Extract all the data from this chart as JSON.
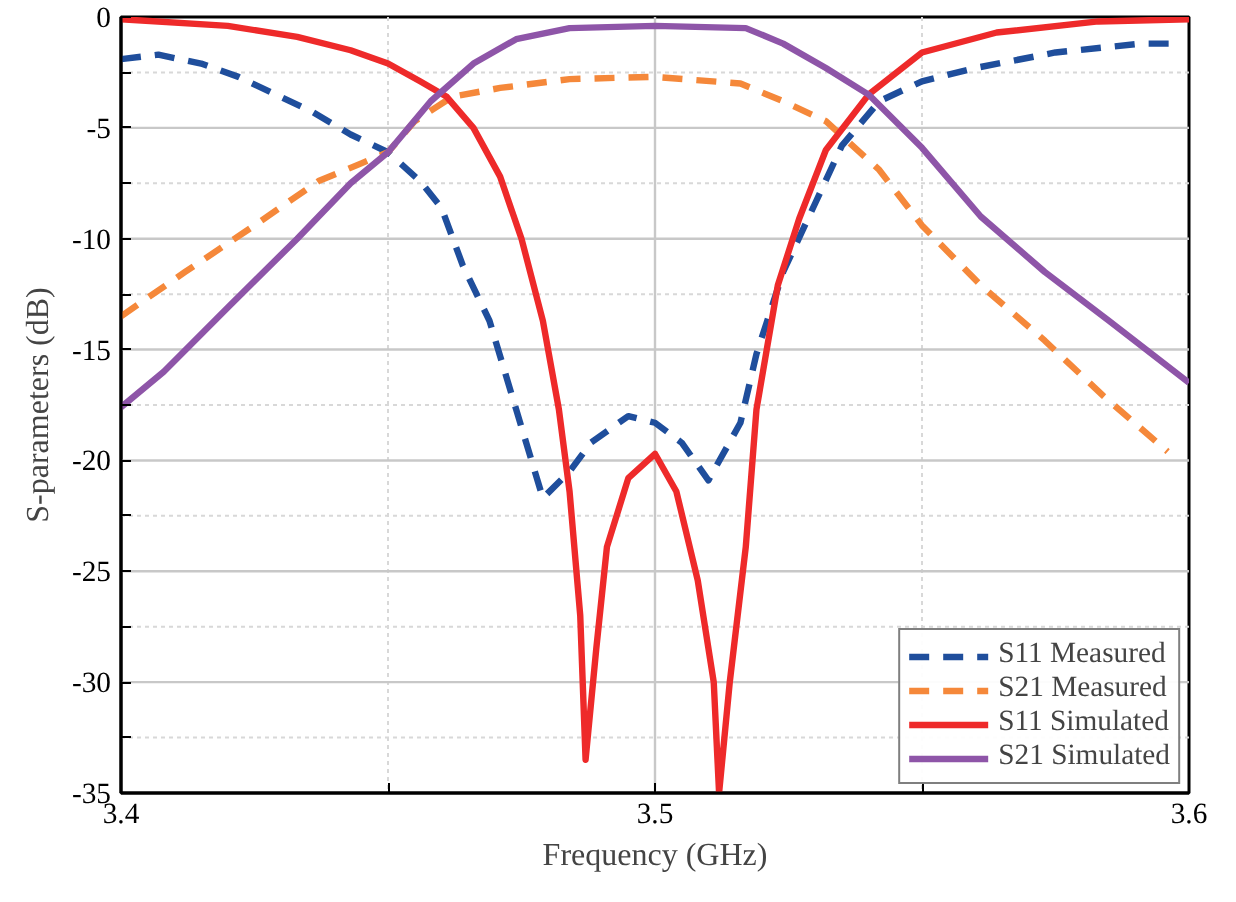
{
  "chart_data": {
    "type": "line",
    "xlabel": "Frequency (GHz)",
    "ylabel": "S-parameters (dB)",
    "xlim": [
      3.4,
      3.6
    ],
    "ylim": [
      -35,
      0
    ],
    "xticks": [
      3.4,
      {
        "value": 3.45,
        "label": null
      },
      3.5,
      {
        "value": 3.55,
        "label": null
      },
      3.6
    ],
    "yticks": [
      -35,
      {
        "value": -32.5,
        "label": null
      },
      -30,
      {
        "value": -27.5,
        "label": null
      },
      -25,
      {
        "value": -22.5,
        "label": null
      },
      -20,
      {
        "value": -17.5,
        "label": null
      },
      -15,
      {
        "value": -12.5,
        "label": null
      },
      -10,
      {
        "value": -7.5,
        "label": null
      },
      -5,
      {
        "value": -2.5,
        "label": null
      },
      0
    ],
    "grid": true,
    "legend": "bottom right",
    "series": [
      {
        "name": "S11 Measured",
        "color": "#1f4e9c",
        "line_style": "dashed",
        "x": [
          3.4,
          3.407,
          3.415,
          3.422,
          3.429,
          3.436,
          3.443,
          3.45,
          3.456,
          3.46,
          3.464,
          3.469,
          3.474,
          3.479,
          3.484,
          3.488,
          3.495,
          3.5,
          3.505,
          3.51,
          3.516,
          3.519,
          3.524,
          3.53,
          3.535,
          3.542,
          3.55,
          3.56,
          3.575,
          3.591,
          3.597
        ],
        "values": [
          -1.9,
          -1.7,
          -2.1,
          -2.7,
          -3.5,
          -4.3,
          -5.3,
          -6.1,
          -7.4,
          -8.6,
          -11.2,
          -13.7,
          -17.7,
          -21.7,
          -20.5,
          -19.2,
          -18,
          -18.3,
          -19.2,
          -20.9,
          -18.3,
          -15.2,
          -11.5,
          -8.4,
          -5.8,
          -3.8,
          -2.9,
          -2.3,
          -1.6,
          -1.2,
          -1.2
        ]
      },
      {
        "name": "S21 Measured",
        "color": "#f5883a",
        "line_style": "dashed",
        "x": [
          3.4,
          3.412,
          3.425,
          3.437,
          3.445,
          3.45,
          3.455,
          3.462,
          3.471,
          3.484,
          3.5,
          3.516,
          3.524,
          3.532,
          3.542,
          3.55,
          3.561,
          3.573,
          3.584,
          3.596
        ],
        "values": [
          -13.5,
          -11.5,
          -9.4,
          -7.4,
          -6.6,
          -6.1,
          -4.7,
          -3.6,
          -3.2,
          -2.8,
          -2.7,
          -3.0,
          -3.8,
          -4.7,
          -6.9,
          -9.4,
          -12.1,
          -14.6,
          -17.1,
          -19.6
        ]
      },
      {
        "name": "S11 Simulated",
        "color": "#ee2a2a",
        "line_style": "solid",
        "x": [
          3.4,
          3.42,
          3.433,
          3.443,
          3.45,
          3.456,
          3.461,
          3.466,
          3.471,
          3.475,
          3.479,
          3.482,
          3.484,
          3.486,
          3.487,
          3.489,
          3.491,
          3.495,
          3.5,
          3.504,
          3.508,
          3.511,
          3.512,
          3.514,
          3.517,
          3.519,
          3.523,
          3.527,
          3.532,
          3.54,
          3.55,
          3.564,
          3.583,
          3.6
        ],
        "values": [
          -0.1,
          -0.4,
          -0.9,
          -1.5,
          -2.1,
          -2.9,
          -3.6,
          -5.0,
          -7.2,
          -10,
          -13.7,
          -17.7,
          -21.4,
          -27,
          -33.5,
          -28.5,
          -23.9,
          -20.8,
          -19.7,
          -21.4,
          -25.4,
          -30,
          -35,
          -30,
          -23.9,
          -17.7,
          -12.1,
          -9.1,
          -6.0,
          -3.5,
          -1.6,
          -0.7,
          -0.2,
          -0.1
        ]
      },
      {
        "name": "S21 Simulated",
        "color": "#8e55a8",
        "line_style": "solid",
        "x": [
          3.4,
          3.408,
          3.42,
          3.433,
          3.443,
          3.45,
          3.458,
          3.466,
          3.474,
          3.484,
          3.5,
          3.517,
          3.524,
          3.532,
          3.54,
          3.55,
          3.561,
          3.573,
          3.585,
          3.6
        ],
        "values": [
          -17.6,
          -16,
          -13.1,
          -10,
          -7.5,
          -6.1,
          -3.8,
          -2.1,
          -1.0,
          -0.5,
          -0.4,
          -0.5,
          -1.2,
          -2.3,
          -3.5,
          -5.9,
          -9.0,
          -11.5,
          -13.7,
          -16.5
        ]
      }
    ]
  }
}
